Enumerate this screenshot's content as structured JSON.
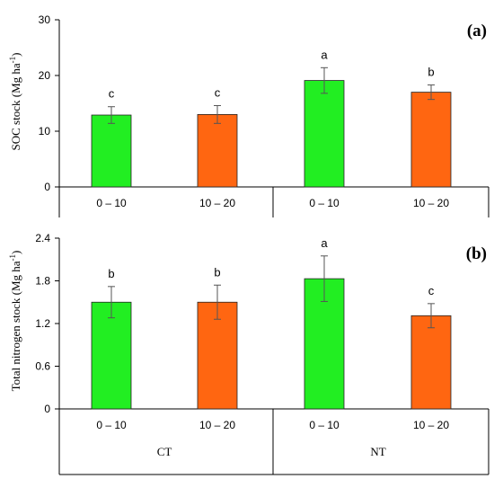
{
  "colors": {
    "bar_0_10": "#22ee22",
    "bar_10_20": "#ff6611",
    "axis": "#000000",
    "error_bar": "#555555"
  },
  "chart_data": [
    {
      "type": "bar",
      "panel_label": "(a)",
      "ylabel": "SOC stock (Mg ha",
      "ylabel_sup": "-1",
      "ylabel_close": ")",
      "ylim": [
        0,
        30
      ],
      "yticks": [
        "0",
        "10",
        "20",
        "30"
      ],
      "ytick_values": [
        0,
        10,
        20,
        30
      ],
      "categories": [
        "0 – 10",
        "10 – 20",
        "0 – 10",
        "10 – 20"
      ],
      "values": [
        12.9,
        13.0,
        19.1,
        17.0
      ],
      "errors": [
        1.5,
        1.6,
        2.3,
        1.3
      ],
      "letters": [
        "c",
        "c",
        "a",
        "b"
      ]
    },
    {
      "type": "bar",
      "panel_label": "(b)",
      "ylabel": "Total nitrogen stock (Mg ha",
      "ylabel_sup": "-1",
      "ylabel_close": ")",
      "ylim": [
        0,
        2.4
      ],
      "yticks": [
        "0",
        "0.6",
        "1.2",
        "1.8",
        "2.4"
      ],
      "ytick_values": [
        0,
        0.6,
        1.2,
        1.8,
        2.4
      ],
      "categories": [
        "0 – 10",
        "10 – 20",
        "0 – 10",
        "10 – 20"
      ],
      "values": [
        1.5,
        1.5,
        1.83,
        1.31
      ],
      "errors": [
        0.22,
        0.24,
        0.32,
        0.17
      ],
      "letters": [
        "b",
        "b",
        "a",
        "c"
      ]
    }
  ],
  "groups": [
    "CT",
    "NT"
  ]
}
